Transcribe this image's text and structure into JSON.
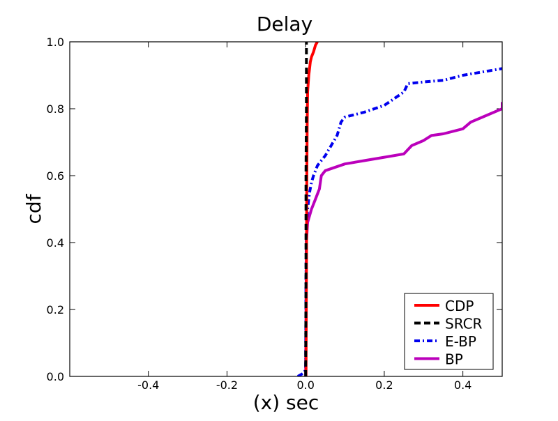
{
  "chart_data": {
    "type": "line",
    "title": "Delay",
    "xlabel": "(x) sec",
    "ylabel": "cdf",
    "xlim": [
      -0.6,
      0.5
    ],
    "ylim": [
      0.0,
      1.0
    ],
    "xticks": [
      -0.4,
      -0.2,
      0.0,
      0.2,
      0.4
    ],
    "xtick_labels": [
      "-0.4",
      "-0.2",
      "0.0",
      "0.2",
      "0.4"
    ],
    "yticks": [
      0.0,
      0.2,
      0.4,
      0.6,
      0.8,
      1.0
    ],
    "ytick_labels": [
      "0.0",
      "0.2",
      "0.4",
      "0.6",
      "0.8",
      "1.0"
    ],
    "grid": false,
    "legend_position": "bottom-right",
    "series": [
      {
        "name": "CDP",
        "color": "#ff0000",
        "dash": "solid",
        "points": [
          [
            0.001,
            0.0
          ],
          [
            0.002,
            0.3
          ],
          [
            0.003,
            0.6
          ],
          [
            0.004,
            0.75
          ],
          [
            0.005,
            0.85
          ],
          [
            0.008,
            0.9
          ],
          [
            0.012,
            0.94
          ],
          [
            0.015,
            0.955
          ],
          [
            0.02,
            0.97
          ],
          [
            0.025,
            0.99
          ],
          [
            0.03,
            1.0
          ]
        ]
      },
      {
        "name": "SRCR",
        "color": "#000000",
        "dash": "dashed",
        "points": [
          [
            0.0,
            0.0
          ],
          [
            0.001,
            0.3
          ],
          [
            0.001,
            0.6
          ],
          [
            0.002,
            0.8
          ],
          [
            0.002,
            0.95
          ],
          [
            0.002,
            1.0
          ]
        ]
      },
      {
        "name": "E-BP",
        "color": "#0000ee",
        "dash": "dashdot",
        "points": [
          [
            -0.02,
            0.0
          ],
          [
            -0.005,
            0.01
          ],
          [
            0.0,
            0.02
          ],
          [
            0.001,
            0.3
          ],
          [
            0.002,
            0.45
          ],
          [
            0.005,
            0.5
          ],
          [
            0.01,
            0.55
          ],
          [
            0.015,
            0.58
          ],
          [
            0.02,
            0.6
          ],
          [
            0.03,
            0.63
          ],
          [
            0.04,
            0.645
          ],
          [
            0.05,
            0.66
          ],
          [
            0.06,
            0.68
          ],
          [
            0.07,
            0.7
          ],
          [
            0.08,
            0.72
          ],
          [
            0.09,
            0.76
          ],
          [
            0.1,
            0.775
          ],
          [
            0.15,
            0.79
          ],
          [
            0.2,
            0.81
          ],
          [
            0.25,
            0.85
          ],
          [
            0.26,
            0.875
          ],
          [
            0.3,
            0.88
          ],
          [
            0.35,
            0.885
          ],
          [
            0.4,
            0.9
          ],
          [
            0.45,
            0.91
          ],
          [
            0.5,
            0.92
          ]
        ]
      },
      {
        "name": "BP",
        "color": "#bb00bb",
        "dash": "solid",
        "points": [
          [
            0.0,
            0.0
          ],
          [
            0.001,
            0.2
          ],
          [
            0.002,
            0.4
          ],
          [
            0.005,
            0.46
          ],
          [
            0.01,
            0.48
          ],
          [
            0.015,
            0.5
          ],
          [
            0.02,
            0.515
          ],
          [
            0.025,
            0.53
          ],
          [
            0.03,
            0.545
          ],
          [
            0.035,
            0.56
          ],
          [
            0.04,
            0.6
          ],
          [
            0.05,
            0.615
          ],
          [
            0.1,
            0.635
          ],
          [
            0.15,
            0.645
          ],
          [
            0.2,
            0.655
          ],
          [
            0.25,
            0.665
          ],
          [
            0.27,
            0.69
          ],
          [
            0.3,
            0.705
          ],
          [
            0.32,
            0.72
          ],
          [
            0.35,
            0.725
          ],
          [
            0.4,
            0.74
          ],
          [
            0.42,
            0.76
          ],
          [
            0.45,
            0.775
          ],
          [
            0.5,
            0.8
          ],
          [
            0.5,
            0.82
          ]
        ]
      }
    ]
  }
}
